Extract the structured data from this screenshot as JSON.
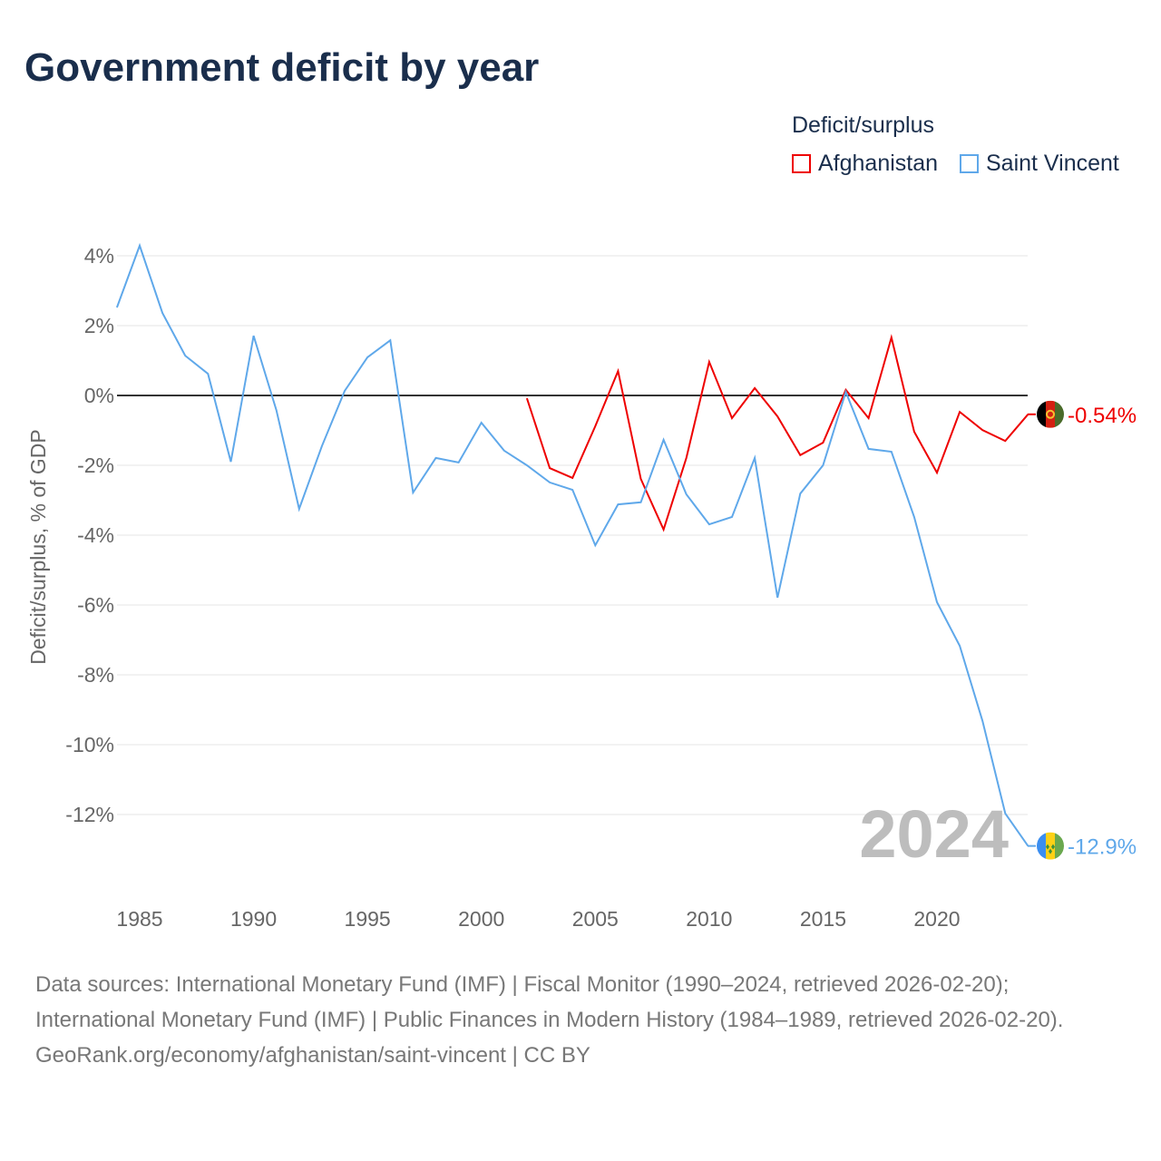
{
  "title": "Government deficit by year",
  "legend": {
    "title": "Deficit/surplus",
    "items": [
      {
        "name": "Afghanistan",
        "color": "#ee0000"
      },
      {
        "name": "Saint Vincent",
        "color": "#5fa8ea"
      }
    ]
  },
  "sources": {
    "line1": "Data sources: International Monetary Fund (IMF) | Fiscal Monitor (1990–2024, retrieved 2026-02-20); International Monetary Fund (IMF) | Public Finances in Modern History (1984–1989, retrieved 2026-02-20).",
    "line2": "GeoRank.org/economy/afghanistan/saint-vincent | CC BY"
  },
  "chart_data": {
    "type": "line",
    "title": "Government deficit by year",
    "ylabel": "Deficit/surplus, % of GDP",
    "xlabel": "",
    "xlim": [
      1984,
      2024
    ],
    "ylim": [
      -13.5,
      4.5
    ],
    "xticks": [
      1985,
      1990,
      1995,
      2000,
      2005,
      2010,
      2015,
      2020
    ],
    "yticks": [
      4,
      2,
      0,
      -2,
      -4,
      -6,
      -8,
      -10,
      -12
    ],
    "ytick_labels": [
      "4%",
      "2%",
      "0%",
      "-2%",
      "-4%",
      "-6%",
      "-8%",
      "-10%",
      "-12%"
    ],
    "year_label": "2024",
    "series": [
      {
        "name": "Afghanistan",
        "color": "#ee0000",
        "end_label": "-0.54%",
        "x_start": 2002,
        "values": [
          -0.08,
          -2.08,
          -2.36,
          -0.88,
          0.7,
          -2.39,
          -3.84,
          -1.79,
          0.96,
          -0.65,
          0.21,
          -0.6,
          -1.71,
          -1.35,
          0.16,
          -0.65,
          1.66,
          -1.04,
          -2.21,
          -0.47,
          -0.99,
          -1.3,
          -0.54
        ]
      },
      {
        "name": "Saint Vincent",
        "color": "#5fa8ea",
        "end_label": "-12.9%",
        "x_start": 1984,
        "values": [
          2.52,
          4.29,
          2.36,
          1.14,
          0.62,
          -1.9,
          1.71,
          -0.42,
          -3.25,
          -1.45,
          0.13,
          1.09,
          1.58,
          -2.78,
          -1.79,
          -1.92,
          -0.78,
          -1.58,
          -2.0,
          -2.49,
          -2.7,
          -4.29,
          -3.12,
          -3.06,
          -1.27,
          -2.83,
          -3.69,
          -3.48,
          -1.79,
          -5.79,
          -2.81,
          -2.0,
          0.1,
          -1.53,
          -1.61,
          -3.48,
          -5.92,
          -7.17,
          -9.32,
          -11.97,
          -12.9
        ]
      }
    ]
  }
}
